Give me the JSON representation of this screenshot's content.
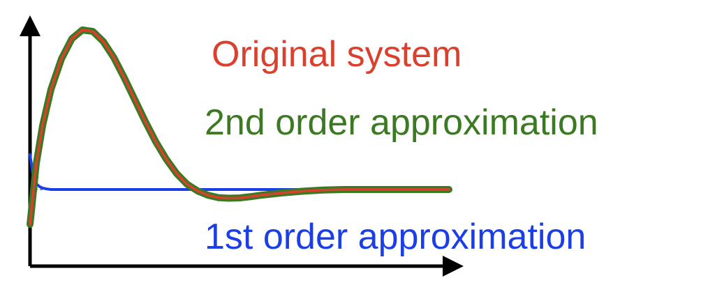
{
  "chart_data": {
    "type": "line",
    "title": "",
    "xlabel": "",
    "ylabel": "",
    "grid": false,
    "legend_placement": "right",
    "colors": {
      "axis": "#000000",
      "original": "#d9402e",
      "second_order": "#3b7a23",
      "first_order": "#1b3ee6",
      "reference": "#555555"
    },
    "series": [
      {
        "name": "Original system",
        "key": "original",
        "x": [
          0,
          0.3,
          0.6,
          1.0,
          1.5,
          2.0,
          2.5,
          3.0,
          3.5,
          4.0,
          4.5,
          5.0,
          5.5,
          6.0,
          6.5,
          7.0,
          7.5,
          8.0,
          8.5,
          9.0,
          9.5,
          10.0,
          10.5,
          11.0,
          12.0,
          13.0,
          14.0,
          15.0,
          16.0,
          17.0,
          18.0,
          19.0,
          20.0
        ],
        "y": [
          -1.2,
          0.9,
          2.2,
          3.45,
          4.5,
          5.2,
          5.5,
          5.45,
          5.1,
          4.55,
          3.85,
          3.1,
          2.35,
          1.65,
          1.05,
          0.55,
          0.18,
          -0.05,
          -0.2,
          -0.28,
          -0.3,
          -0.29,
          -0.25,
          -0.2,
          -0.12,
          -0.06,
          -0.02,
          0.0,
          0.0,
          0.0,
          0.0,
          0.0,
          0.0
        ]
      },
      {
        "name": "2nd order approximation",
        "key": "second_order",
        "x": [
          0,
          0.3,
          0.6,
          1.0,
          1.5,
          2.0,
          2.5,
          3.0,
          3.5,
          4.0,
          4.5,
          5.0,
          5.5,
          6.0,
          6.5,
          7.0,
          7.5,
          8.0,
          8.5,
          9.0,
          9.5,
          10.0,
          10.5,
          11.0,
          12.0,
          13.0,
          14.0,
          15.0,
          16.0,
          17.0,
          18.0,
          19.0,
          20.0
        ],
        "y": [
          -1.2,
          0.9,
          2.2,
          3.45,
          4.5,
          5.2,
          5.5,
          5.45,
          5.1,
          4.55,
          3.85,
          3.1,
          2.35,
          1.65,
          1.05,
          0.55,
          0.18,
          -0.05,
          -0.2,
          -0.28,
          -0.3,
          -0.29,
          -0.25,
          -0.2,
          -0.12,
          -0.06,
          -0.02,
          0.0,
          0.0,
          0.0,
          0.0,
          0.0,
          0.0
        ]
      },
      {
        "name": "1st order approximation",
        "key": "first_order",
        "x": [
          0,
          0.05,
          0.12,
          0.2,
          0.3,
          0.45,
          0.6,
          0.8,
          1.0,
          1.5,
          2.0,
          4.0,
          6.0,
          8.0,
          10.0,
          12.0,
          14.0
        ],
        "y": [
          1.2,
          0.95,
          0.6,
          0.35,
          0.2,
          0.1,
          0.05,
          0.02,
          0.0,
          0.0,
          0.0,
          0.0,
          0.0,
          0.0,
          0.0,
          0.0,
          0.0
        ]
      }
    ],
    "reference_line": {
      "y": 0,
      "x": [
        0,
        20
      ],
      "style": "dashed"
    },
    "xlim": [
      0,
      20
    ],
    "ylim": [
      -3.3,
      6.5
    ]
  }
}
